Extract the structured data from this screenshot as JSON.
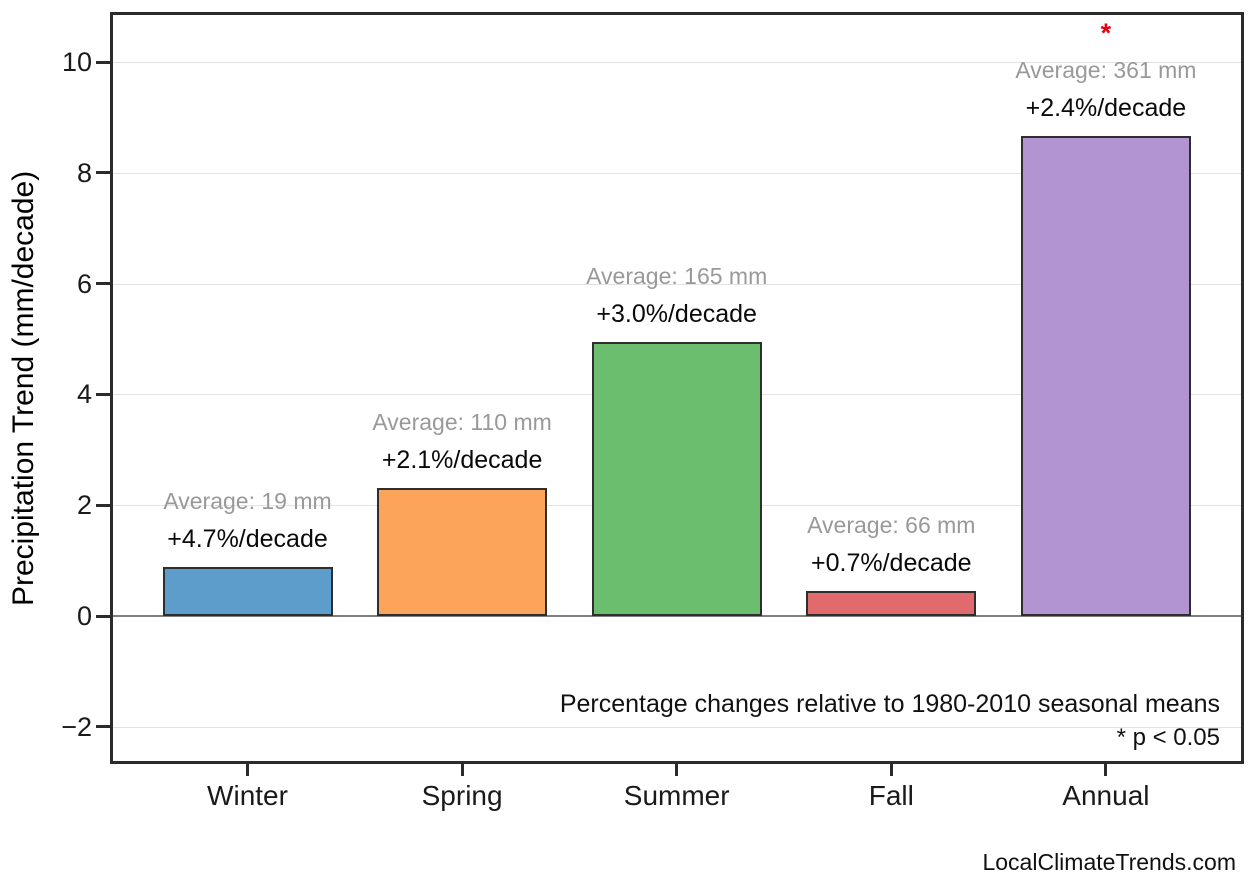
{
  "chart_data": {
    "type": "bar",
    "categories": [
      "Winter",
      "Spring",
      "Summer",
      "Fall",
      "Annual"
    ],
    "values": [
      0.89,
      2.31,
      4.95,
      0.46,
      8.66
    ],
    "series_unit": "mm/decade",
    "bar_colors": [
      "#5d9dcc",
      "#fca55a",
      "#6abe6e",
      "#e16a6d",
      "#b294d2"
    ],
    "bar_edge_color": "#2e2e2e",
    "averages_mm": [
      19,
      110,
      165,
      66,
      361
    ],
    "average_labels": [
      "Average: 19 mm",
      "Average: 110 mm",
      "Average: 165 mm",
      "Average: 66 mm",
      "Average: 361 mm"
    ],
    "pct_labels": [
      "+4.7%/decade",
      "+2.1%/decade",
      "+3.0%/decade",
      "+0.7%/decade",
      "+2.4%/decade"
    ],
    "significant": [
      false,
      false,
      false,
      false,
      true
    ],
    "significance_marker": "*",
    "title": "",
    "xlabel": "",
    "ylabel": "Precipitation Trend (mm/decade)",
    "yticks": [
      -2,
      0,
      2,
      4,
      6,
      8,
      10
    ],
    "ylim": [
      -2.7,
      10.9
    ],
    "grid": true,
    "legend": "none",
    "annotations": {
      "note": "Percentage changes relative to 1980-2010 seasonal means",
      "significance": "* p < 0.05"
    },
    "watermark": "LocalClimateTrends.com"
  },
  "colors": {
    "star": "#e8000b",
    "avg_label": "#999999",
    "pct_label": "#0a0a0a",
    "grid": "#e3e3e3",
    "zero_line": "#808080",
    "frame": "#2b2b2b"
  }
}
